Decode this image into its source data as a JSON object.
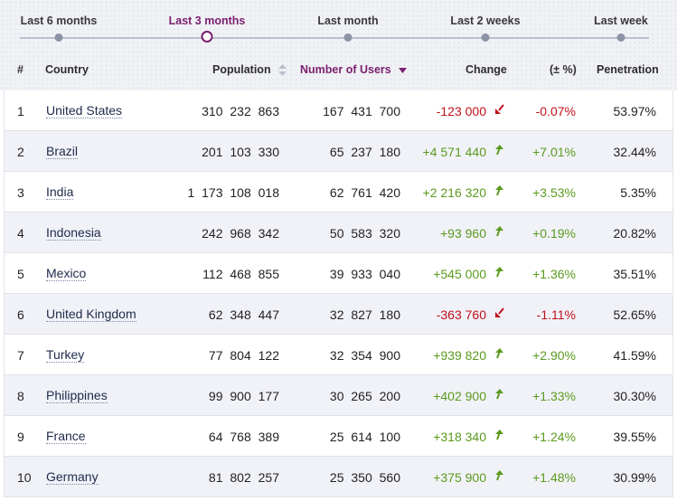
{
  "periods": [
    {
      "label": "Last 6 months",
      "active": false
    },
    {
      "label": "Last 3 months",
      "active": true
    },
    {
      "label": "Last month",
      "active": false
    },
    {
      "label": "Last 2 weeks",
      "active": false
    },
    {
      "label": "Last week",
      "active": false
    }
  ],
  "columns": {
    "rank": "#",
    "country": "Country",
    "population": "Population",
    "users": "Number of Users",
    "change": "Change",
    "pct": "(± %)",
    "penetration": "Penetration"
  },
  "colors": {
    "accent": "#7a1f6e",
    "positive": "#5a9a1e",
    "negative": "#c0101a"
  },
  "icons": {
    "positive_trend": "arrow-up-icon",
    "negative_trend": "arrow-down-icon",
    "sortable": "sort-both-icon",
    "sorted_desc": "sort-desc-icon"
  },
  "rows": [
    {
      "rank": "1",
      "country": "United States",
      "population": "310 232 863",
      "users": "167 431 700",
      "change": "-123 000",
      "pct": "-0.07%",
      "penetration": "53.97%",
      "trend": "negative"
    },
    {
      "rank": "2",
      "country": "Brazil",
      "population": "201 103 330",
      "users": "65 237 180",
      "change": "+4 571 440",
      "pct": "+7.01%",
      "penetration": "32.44%",
      "trend": "positive"
    },
    {
      "rank": "3",
      "country": "India",
      "population": "1 173 108 018",
      "users": "62 761 420",
      "change": "+2 216 320",
      "pct": "+3.53%",
      "penetration": "5.35%",
      "trend": "positive"
    },
    {
      "rank": "4",
      "country": "Indonesia",
      "population": "242 968 342",
      "users": "50 583 320",
      "change": "+93 960",
      "pct": "+0.19%",
      "penetration": "20.82%",
      "trend": "positive"
    },
    {
      "rank": "5",
      "country": "Mexico",
      "population": "112 468 855",
      "users": "39 933 040",
      "change": "+545 000",
      "pct": "+1.36%",
      "penetration": "35.51%",
      "trend": "positive"
    },
    {
      "rank": "6",
      "country": "United Kingdom",
      "population": "62 348 447",
      "users": "32 827 180",
      "change": "-363 760",
      "pct": "-1.11%",
      "penetration": "52.65%",
      "trend": "negative"
    },
    {
      "rank": "7",
      "country": "Turkey",
      "population": "77 804 122",
      "users": "32 354 900",
      "change": "+939 820",
      "pct": "+2.90%",
      "penetration": "41.59%",
      "trend": "positive"
    },
    {
      "rank": "8",
      "country": "Philippines",
      "population": "99 900 177",
      "users": "30 265 200",
      "change": "+402 900",
      "pct": "+1.33%",
      "penetration": "30.30%",
      "trend": "positive"
    },
    {
      "rank": "9",
      "country": "France",
      "population": "64 768 389",
      "users": "25 614 100",
      "change": "+318 340",
      "pct": "+1.24%",
      "penetration": "39.55%",
      "trend": "positive"
    },
    {
      "rank": "10",
      "country": "Germany",
      "population": "81 802 257",
      "users": "25 350 560",
      "change": "+375 900",
      "pct": "+1.48%",
      "penetration": "30.99%",
      "trend": "positive"
    }
  ]
}
